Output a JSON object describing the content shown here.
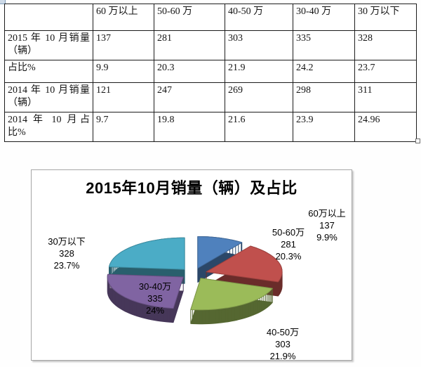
{
  "table": {
    "columns": [
      "",
      "60 万以上",
      "50-60 万",
      "40-50 万",
      "30-40 万",
      "30 万以下"
    ],
    "rows": [
      {
        "label": "2015 年 10 月销量（辆）",
        "values": [
          "137",
          "281",
          "303",
          "335",
          "328"
        ]
      },
      {
        "label": "占比%",
        "values": [
          "9.9",
          "20.3",
          "21.9",
          "24.2",
          "23.7"
        ]
      },
      {
        "label": "2014 年 10 月销量（辆）",
        "values": [
          "121",
          "247",
          "269",
          "298",
          "311"
        ]
      },
      {
        "label": "2014 年 10 月占比%",
        "values": [
          "9.7",
          "19.8",
          "21.6",
          "23.9",
          "24.96"
        ]
      }
    ]
  },
  "icons": {
    "table_move": "table-move-handle-icon",
    "table_resize": "table-resize-handle-icon"
  },
  "chart_data": {
    "type": "pie",
    "style": "3d-exploded",
    "title": "2015年10月销量（辆）及占比",
    "start_angle_deg": 0,
    "clockwise": true,
    "legend_position": "none",
    "slices": [
      {
        "label": "60万以上",
        "value": 137,
        "pct": 9.9,
        "pct_label": "9.9%",
        "color": "#4F81BD"
      },
      {
        "label": "50-60万",
        "value": 281,
        "pct": 20.3,
        "pct_label": "20.3%",
        "color": "#C0504D"
      },
      {
        "label": "40-50万",
        "value": 303,
        "pct": 21.9,
        "pct_label": "21.9%",
        "color": "#9BBB59"
      },
      {
        "label": "30-40万",
        "value": 335,
        "pct": 24.2,
        "pct_label": "24%",
        "color": "#8064A2"
      },
      {
        "label": "30万以下",
        "value": 328,
        "pct": 23.7,
        "pct_label": "23.7%",
        "color": "#4BACC6"
      }
    ]
  }
}
